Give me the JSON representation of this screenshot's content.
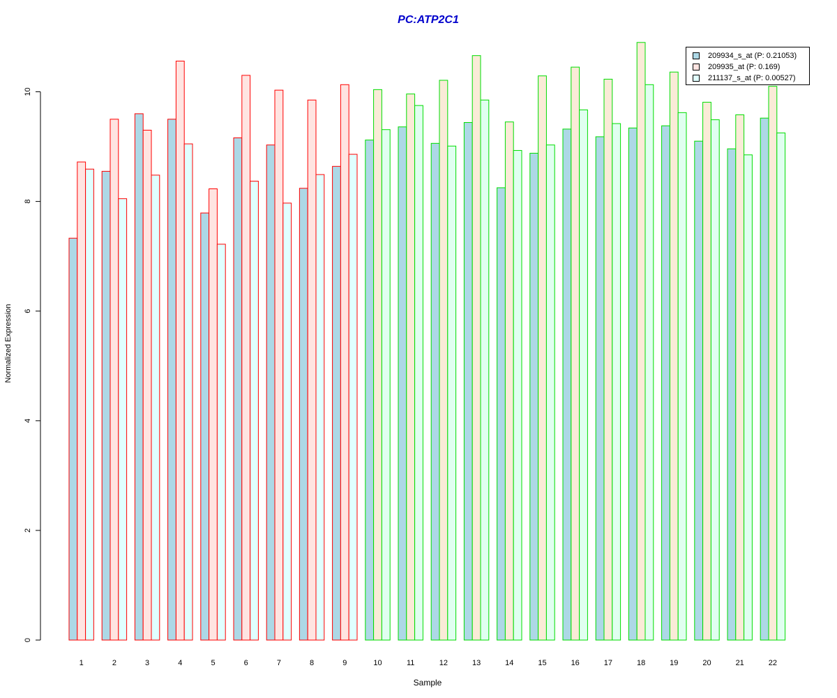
{
  "chart_data": {
    "type": "bar",
    "title": "PC:ATP2C1",
    "title_color": "#0000cc",
    "xlabel": "Sample",
    "ylabel": "Normalized Expression",
    "categories": [
      "1",
      "2",
      "3",
      "4",
      "5",
      "6",
      "7",
      "8",
      "9",
      "10",
      "11",
      "12",
      "13",
      "14",
      "15",
      "16",
      "17",
      "18",
      "19",
      "20",
      "21",
      "22"
    ],
    "ylim": [
      0,
      11
    ],
    "yticks": [
      "0",
      "2",
      "4",
      "6",
      "8",
      "10"
    ],
    "grid": false,
    "legend_position": "top-right",
    "group_border_colors": {
      "1-9": "#ff0000",
      "10-22": "#00dd00"
    },
    "series": [
      {
        "name": "209934_s_at (P: 0.21053)",
        "color": "#add8e6",
        "values": [
          7.33,
          8.55,
          9.6,
          9.5,
          7.79,
          9.16,
          9.03,
          8.24,
          8.64,
          9.12,
          9.36,
          9.06,
          9.44,
          8.25,
          8.88,
          9.32,
          9.18,
          9.34,
          9.38,
          9.1,
          8.96,
          9.52
        ]
      },
      {
        "name": "209935_at (P: 0.169)",
        "colors": [
          "#ffe4e1",
          "#faebd7"
        ],
        "values": [
          8.72,
          9.5,
          9.3,
          10.56,
          8.23,
          10.3,
          10.03,
          9.85,
          10.13,
          10.04,
          9.96,
          10.21,
          10.66,
          9.45,
          10.29,
          10.45,
          10.23,
          10.9,
          10.36,
          9.81,
          9.58,
          10.1
        ]
      },
      {
        "name": "211137_s_at (P: 0.00527)",
        "colors": [
          "#e0ffff",
          "#e0fff0"
        ],
        "values": [
          8.59,
          8.05,
          8.48,
          9.05,
          7.22,
          8.37,
          7.97,
          8.49,
          8.86,
          9.31,
          9.75,
          9.01,
          9.85,
          8.93,
          9.03,
          9.67,
          9.42,
          10.13,
          9.62,
          9.49,
          8.85,
          9.25
        ]
      }
    ]
  }
}
